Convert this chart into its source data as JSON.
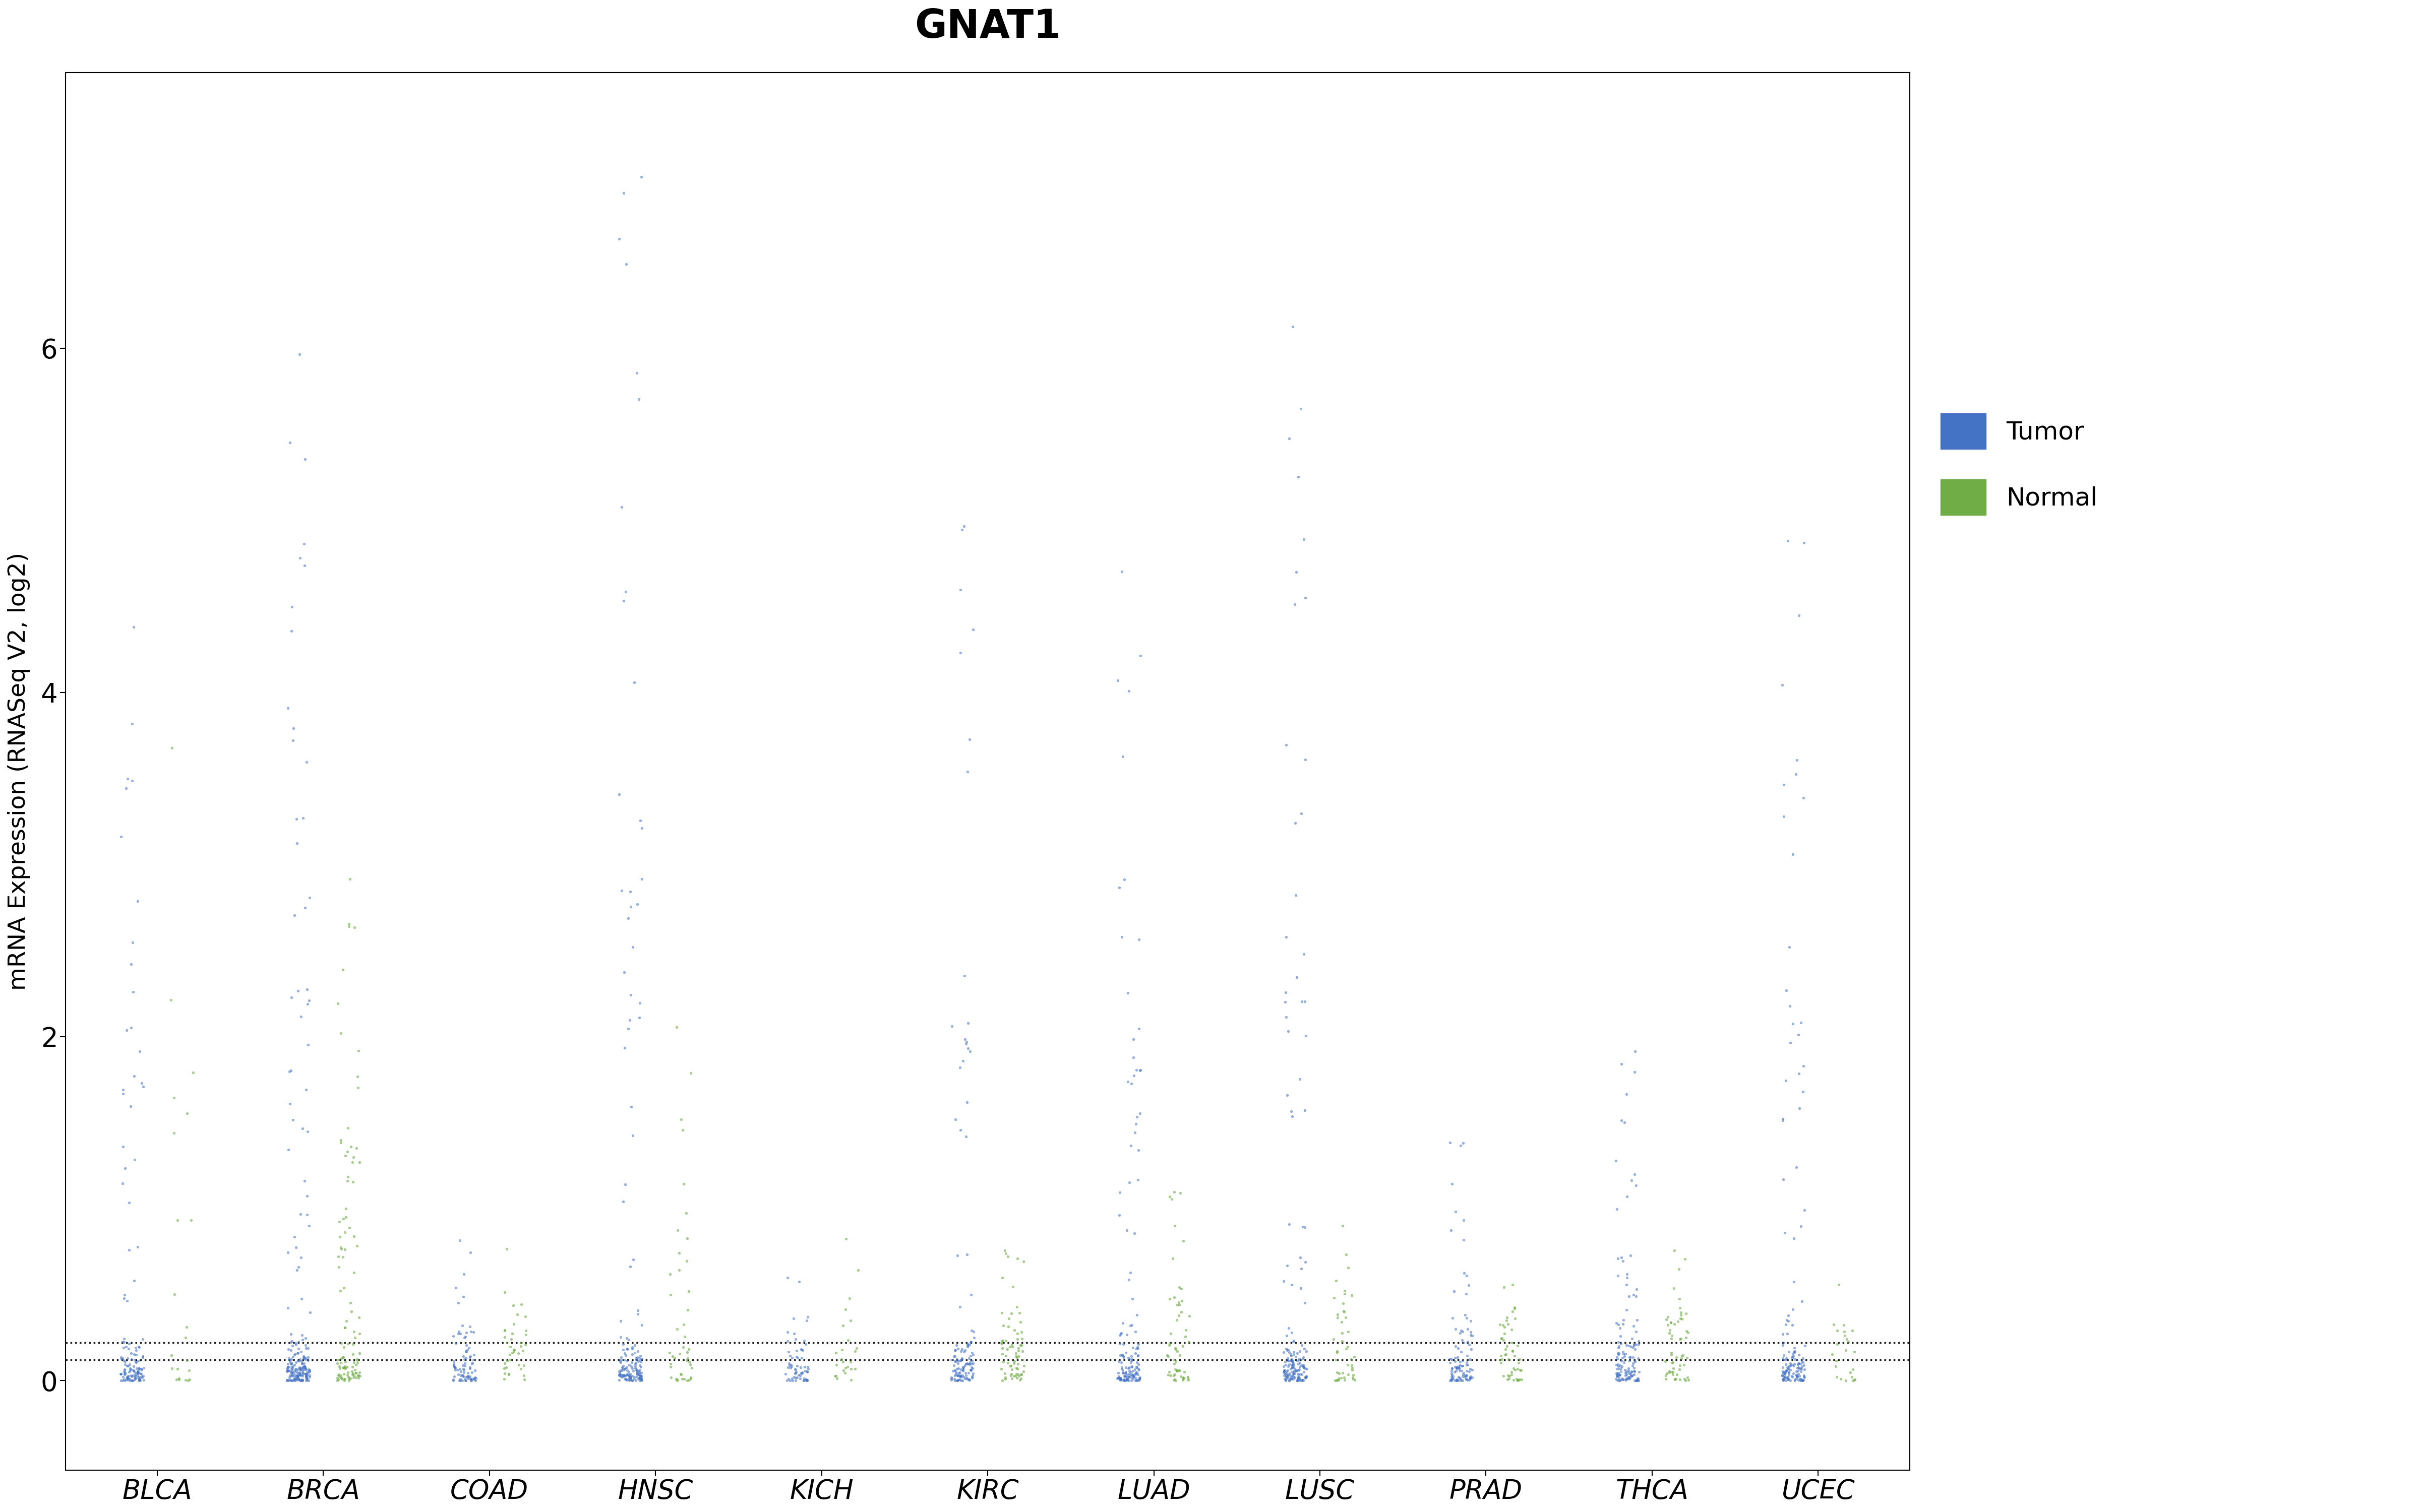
{
  "title": "GNAT1",
  "ylabel": "mRNA Expression (RNASeq V2, log2)",
  "categories": [
    "BLCA",
    "BRCA",
    "COAD",
    "HNSC",
    "KICH",
    "KIRC",
    "LUAD",
    "LUSC",
    "PRAD",
    "THCA",
    "UCEC"
  ],
  "tumor_color": "#4472C4",
  "normal_color": "#70AD47",
  "ylim": [
    -0.52,
    7.6
  ],
  "yticks": [
    0,
    2,
    4,
    6
  ],
  "dashed_lines": [
    0.12,
    0.22
  ],
  "tumor_counts": {
    "BLCA": 130,
    "BRCA": 200,
    "COAD": 80,
    "HNSC": 150,
    "KICH": 60,
    "KIRC": 120,
    "LUAD": 140,
    "LUSC": 160,
    "PRAD": 100,
    "THCA": 130,
    "UCEC": 140
  },
  "normal_counts": {
    "BLCA": 22,
    "BRCA": 110,
    "COAD": 40,
    "HNSC": 44,
    "KICH": 25,
    "KIRC": 72,
    "LUAD": 58,
    "LUSC": 46,
    "PRAD": 52,
    "THCA": 58,
    "UCEC": 24
  },
  "tumor_max": {
    "BLCA": 5.1,
    "BRCA": 6.0,
    "COAD": 0.9,
    "HNSC": 7.3,
    "KICH": 0.7,
    "KIRC": 5.1,
    "LUAD": 4.8,
    "LUSC": 6.5,
    "PRAD": 1.4,
    "THCA": 2.0,
    "UCEC": 5.5
  },
  "normal_max": {
    "BLCA": 3.8,
    "BRCA": 3.0,
    "COAD": 0.8,
    "HNSC": 2.3,
    "KICH": 0.9,
    "KIRC": 0.8,
    "LUAD": 1.2,
    "LUSC": 1.0,
    "PRAD": 0.7,
    "THCA": 0.8,
    "UCEC": 0.6
  },
  "tumor_median": {
    "BLCA": 0.05,
    "BRCA": 0.04,
    "COAD": 0.03,
    "HNSC": 0.07,
    "KICH": 0.08,
    "KIRC": 0.05,
    "LUAD": 0.06,
    "LUSC": 0.06,
    "PRAD": 0.04,
    "THCA": 0.05,
    "UCEC": 0.05
  },
  "normal_median": {
    "BLCA": 0.08,
    "BRCA": 0.12,
    "COAD": 0.1,
    "HNSC": 0.1,
    "KICH": 0.09,
    "KIRC": 0.09,
    "LUAD": 0.1,
    "LUSC": 0.09,
    "PRAD": 0.08,
    "THCA": 0.09,
    "UCEC": 0.08
  }
}
